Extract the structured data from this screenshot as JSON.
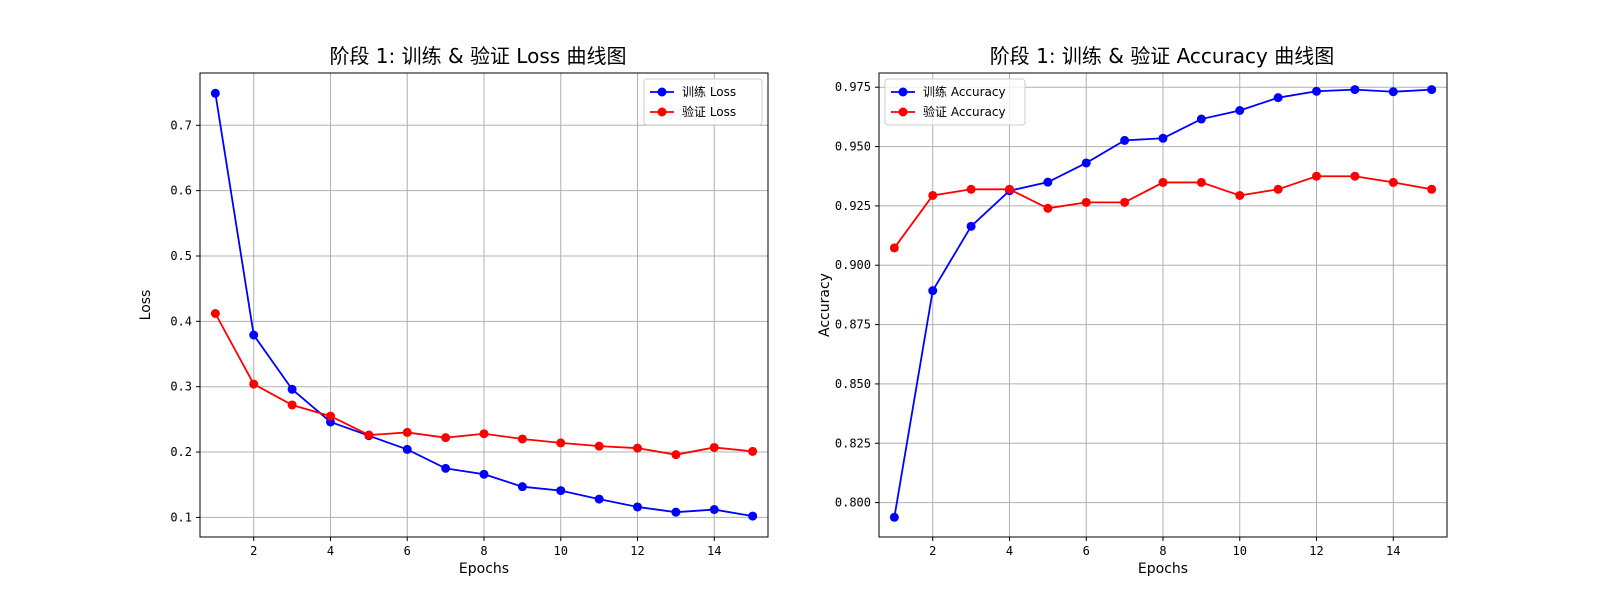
{
  "chart_data": [
    {
      "type": "line",
      "title": "阶段 1: 训练 & 验证 Loss 曲线图",
      "xlabel": "Epochs",
      "ylabel": "Loss",
      "x": [
        1,
        2,
        3,
        4,
        5,
        6,
        7,
        8,
        9,
        10,
        11,
        12,
        13,
        14,
        15
      ],
      "xlim": [
        0.6,
        15.4
      ],
      "ylim": [
        0.07,
        0.78
      ],
      "xticks": [
        2,
        4,
        6,
        8,
        10,
        12,
        14
      ],
      "yticks": [
        0.1,
        0.2,
        0.3,
        0.4,
        0.5,
        0.6,
        0.7
      ],
      "ytick_labels": [
        "0.1",
        "0.2",
        "0.3",
        "0.4",
        "0.5",
        "0.6",
        "0.7"
      ],
      "grid": true,
      "legend_position": "top-right",
      "series": [
        {
          "name": "训练 Loss",
          "color": "#0000ff",
          "values": [
            0.749,
            0.379,
            0.296,
            0.246,
            0.225,
            0.204,
            0.175,
            0.166,
            0.147,
            0.141,
            0.128,
            0.116,
            0.108,
            0.112,
            0.102
          ]
        },
        {
          "name": "验证 Loss",
          "color": "#ff0000",
          "values": [
            0.412,
            0.304,
            0.272,
            0.255,
            0.226,
            0.23,
            0.222,
            0.228,
            0.22,
            0.214,
            0.209,
            0.206,
            0.196,
            0.207,
            0.201
          ]
        }
      ]
    },
    {
      "type": "line",
      "title": "阶段 1: 训练 & 验证 Accuracy 曲线图",
      "xlabel": "Epochs",
      "ylabel": "Accuracy",
      "x": [
        1,
        2,
        3,
        4,
        5,
        6,
        7,
        8,
        9,
        10,
        11,
        12,
        13,
        14,
        15
      ],
      "xlim": [
        0.6,
        15.4
      ],
      "ylim": [
        0.7855,
        0.981
      ],
      "xticks": [
        2,
        4,
        6,
        8,
        10,
        12,
        14
      ],
      "yticks": [
        0.8,
        0.825,
        0.85,
        0.875,
        0.9,
        0.925,
        0.95,
        0.975
      ],
      "ytick_labels": [
        "0.800",
        "0.825",
        "0.850",
        "0.875",
        "0.900",
        "0.925",
        "0.950",
        "0.975"
      ],
      "grid": true,
      "legend_position": "top-left",
      "series": [
        {
          "name": "训练 Accuracy",
          "color": "#0000ff",
          "values": [
            0.7938,
            0.8893,
            0.9164,
            0.9314,
            0.935,
            0.9431,
            0.9526,
            0.9535,
            0.9616,
            0.9652,
            0.9706,
            0.9733,
            0.974,
            0.9731,
            0.974
          ]
        },
        {
          "name": "验证 Accuracy",
          "color": "#ff0000",
          "values": [
            0.9073,
            0.9294,
            0.932,
            0.932,
            0.924,
            0.9265,
            0.9265,
            0.9349,
            0.9349,
            0.9294,
            0.932,
            0.9375,
            0.9375,
            0.9349,
            0.932
          ]
        }
      ]
    }
  ]
}
